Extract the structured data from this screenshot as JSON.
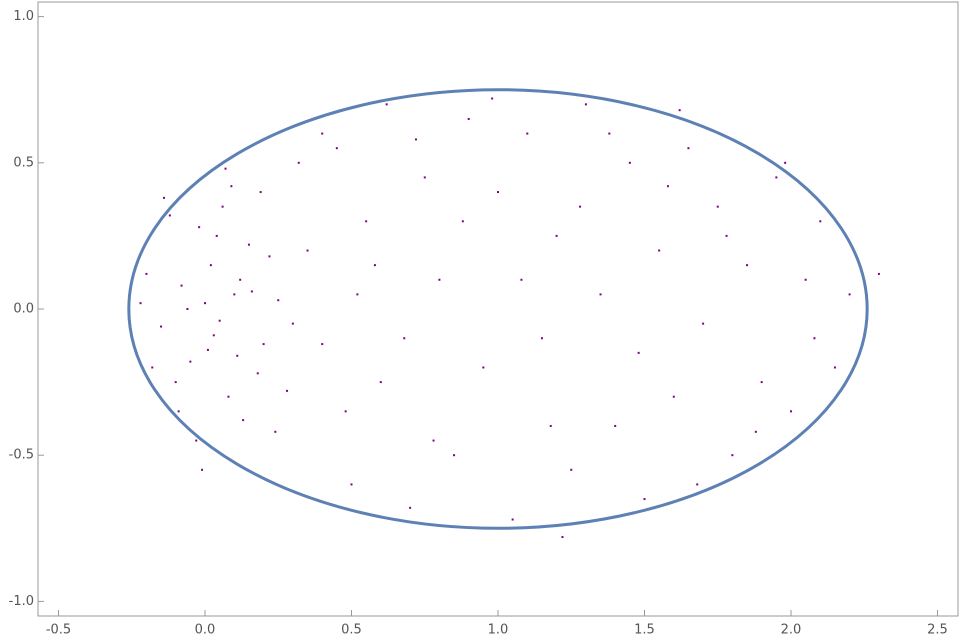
{
  "chart_data": {
    "type": "scatter",
    "xlim": [
      -0.57,
      2.57
    ],
    "ylim": [
      -1.05,
      1.05
    ],
    "xticks": [
      -0.5,
      {
        "value": 0,
        "label": "0.0"
      },
      0.5,
      {
        "value": 1,
        "label": "1.0"
      },
      1.5,
      {
        "value": 2,
        "label": "2.0"
      },
      2.5
    ],
    "yticks": [
      {
        "value": -1,
        "label": "-1.0"
      },
      -0.5,
      {
        "value": 0,
        "label": "0.0"
      },
      0.5,
      {
        "value": 1,
        "label": "1.0"
      }
    ],
    "series": [
      {
        "color": "#800080",
        "x": [
          0.0,
          0.05,
          -0.08,
          0.12,
          -0.15,
          0.02,
          0.2,
          -0.05,
          0.1,
          -0.2,
          0.15,
          0.03,
          -0.1,
          0.25,
          0.08,
          -0.02,
          0.3,
          -0.18,
          0.06,
          0.18,
          -0.12,
          0.22,
          0.01,
          -0.06,
          0.13,
          0.35,
          -0.22,
          0.09,
          0.28,
          -0.03,
          0.16,
          0.04,
          -0.14,
          0.11,
          0.4,
          -0.09,
          0.07,
          0.19,
          -0.01,
          0.24,
          0.45,
          0.5,
          0.55,
          0.6,
          0.62,
          0.7,
          0.75,
          0.8,
          0.85,
          0.9,
          0.95,
          1.0,
          1.05,
          1.1,
          1.15,
          1.2,
          1.25,
          1.3,
          1.35,
          1.4,
          1.45,
          1.5,
          1.55,
          1.6,
          1.65,
          1.7,
          1.75,
          1.8,
          1.85,
          1.9,
          1.95,
          2.0,
          2.05,
          2.1,
          2.15,
          2.2,
          0.48,
          0.58,
          0.68,
          0.78,
          0.88,
          0.98,
          1.08,
          1.18,
          1.28,
          1.38,
          1.48,
          1.58,
          1.68,
          1.78,
          1.88,
          1.98,
          2.08,
          0.4,
          0.52,
          0.72,
          1.22,
          1.62,
          0.32,
          2.3
        ],
        "values": [
          0.02,
          -0.04,
          0.08,
          0.1,
          -0.06,
          0.15,
          -0.12,
          -0.18,
          0.05,
          0.12,
          0.22,
          -0.09,
          -0.25,
          0.03,
          -0.3,
          0.28,
          -0.05,
          -0.2,
          0.35,
          -0.22,
          0.32,
          0.18,
          -0.14,
          0.0,
          -0.38,
          0.2,
          0.02,
          0.42,
          -0.28,
          -0.45,
          0.06,
          0.25,
          0.38,
          -0.16,
          -0.12,
          -0.35,
          0.48,
          0.4,
          -0.55,
          -0.42,
          0.55,
          -0.6,
          0.3,
          -0.25,
          0.7,
          -0.68,
          0.45,
          0.1,
          -0.5,
          0.65,
          -0.2,
          0.4,
          -0.72,
          0.6,
          -0.1,
          0.25,
          -0.55,
          0.7,
          0.05,
          -0.4,
          0.5,
          -0.65,
          0.2,
          -0.3,
          0.55,
          -0.05,
          0.35,
          -0.5,
          0.15,
          -0.25,
          0.45,
          -0.35,
          0.1,
          0.3,
          -0.2,
          0.05,
          -0.35,
          0.15,
          -0.1,
          -0.45,
          0.3,
          0.72,
          0.1,
          -0.4,
          0.35,
          0.6,
          -0.15,
          0.42,
          -0.6,
          0.25,
          -0.42,
          0.5,
          -0.1,
          0.6,
          0.05,
          0.58,
          -0.78,
          0.68,
          0.5,
          0.12
        ]
      }
    ],
    "ellipse": {
      "cx": 1.0,
      "cy": 0,
      "rx": 1.26,
      "ry": 0.75,
      "color": "#5e81b5"
    }
  }
}
